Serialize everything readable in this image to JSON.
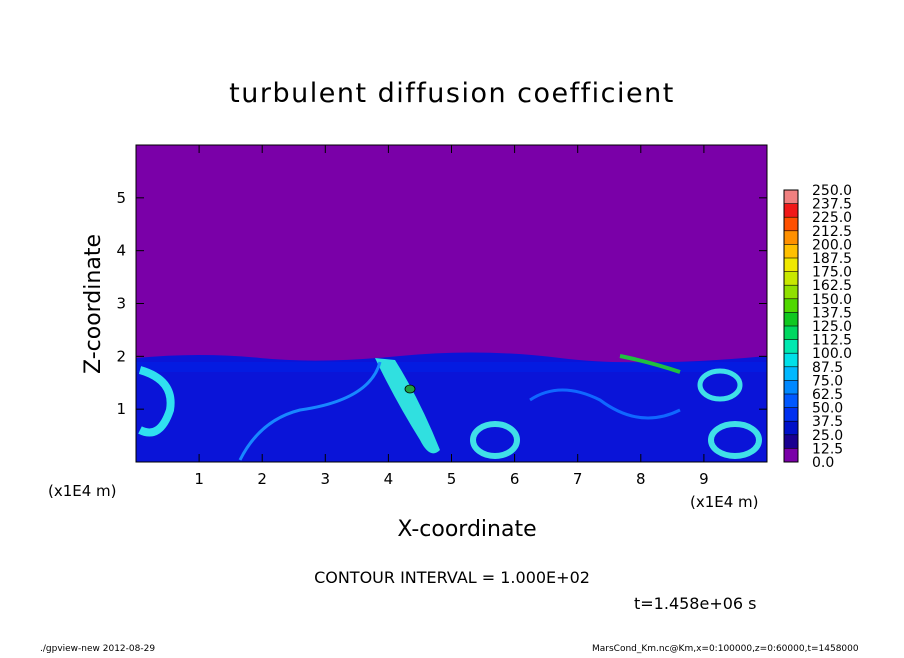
{
  "chart_data": {
    "type": "contour",
    "title": "turbulent diffusion coefficient",
    "x_label": "X-coordinate",
    "y_label": "Z-coordinate",
    "x_unit": "(x1E4 m)",
    "y_unit": "(x1E4 m)",
    "xlim": [
      0,
      10
    ],
    "xticks": [
      1,
      2,
      3,
      4,
      5,
      6,
      7,
      8,
      9
    ],
    "ylim": [
      0,
      6
    ],
    "yticks": [
      1,
      2,
      3,
      4,
      5
    ],
    "contour_interval_text": "CONTOUR INTERVAL = 1.000E+02",
    "time_text": "t=1.458e+06 s",
    "footer_left": "./gpview-new  2012-08-29",
    "footer_right": "MarsCond_Km.nc@Km,x=0:100000,z=0:60000,t=1458000",
    "colorbar": {
      "levels": [
        {
          "value": 0,
          "label": "0.0"
        },
        12.5,
        {
          "value": 25,
          "label": "25.0"
        },
        37.5,
        {
          "value": 50,
          "label": "50.0"
        },
        62.5,
        {
          "value": 75,
          "label": "75.0"
        },
        87.5,
        {
          "value": 100,
          "label": "100.0"
        },
        112.5,
        {
          "value": 125,
          "label": "125.0"
        },
        137.5,
        {
          "value": 150,
          "label": "150.0"
        },
        162.5,
        {
          "value": 175,
          "label": "175.0"
        },
        187.5,
        {
          "value": 200,
          "label": "200.0"
        },
        212.5,
        {
          "value": 225,
          "label": "225.0"
        },
        237.5,
        {
          "value": 250,
          "label": "250.0"
        }
      ],
      "colors": [
        "#7a00a8",
        "#1a0090",
        "#0010c8",
        "#0030f0",
        "#0058ff",
        "#0088ff",
        "#00b8ff",
        "#00e0e8",
        "#00e8b0",
        "#00d860",
        "#10c820",
        "#50d800",
        "#90e000",
        "#c8e800",
        "#f0e800",
        "#ffc000",
        "#ff9000",
        "#ff5000",
        "#f01818",
        "#f08080"
      ]
    }
  }
}
